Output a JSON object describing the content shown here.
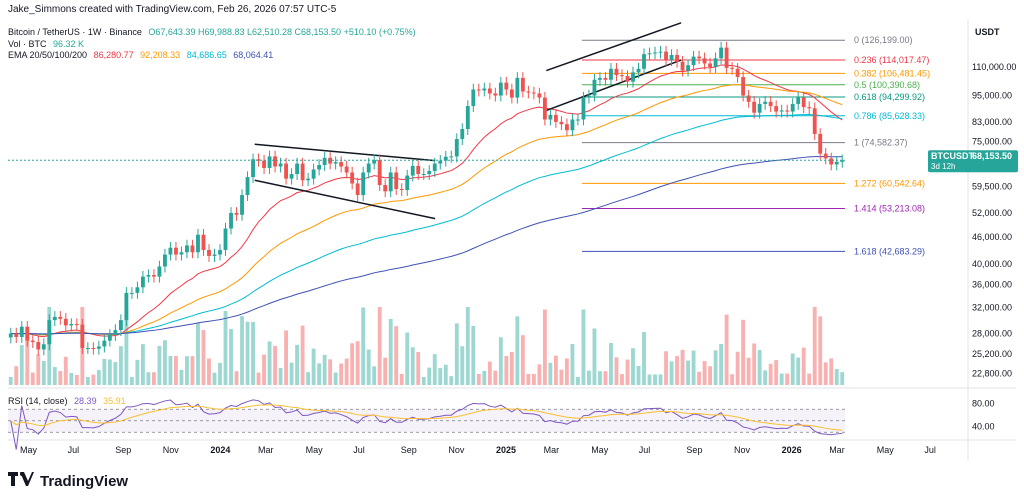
{
  "header": {
    "credit": "Jake_Simmons created with TradingView.com, Feb 26, 2026 07:57 UTC-5",
    "symbol": "Bitcoin / TetherUS · 1W · Binance",
    "ohlc": "O67,643.39  H69,988.83  L62,510.28  C68,153.50  +510.10 (+0.75%)",
    "volume_label": "Vol · BTC",
    "volume_value": "96.32 K",
    "ema_label": "EMA 20/50/100/200",
    "ema_values": [
      "86,280.77",
      "92,208.33",
      "84,686.65",
      "68,064.41"
    ],
    "currency": "USDT"
  },
  "colors": {
    "up": "#26a69a",
    "down": "#ef5350",
    "ema20": "#f23645",
    "ema50": "#ff9800",
    "ema100": "#00bcd4",
    "ema200": "#3f51b5",
    "rsi": "#7e57c2",
    "rsi_ma": "#fbc02d"
  },
  "price_axis": {
    "ticks": [
      "110,000.00",
      "95,000.00",
      "83,000.00",
      "75,000.00",
      "59,500.00",
      "52,000.00",
      "46,000.00",
      "40,000.00",
      "36,000.00",
      "32,000.00",
      "28,000.00",
      "25,200.00",
      "22,800.00"
    ],
    "ticks_num": [
      110000,
      95000,
      83000,
      75000,
      59500,
      52000,
      46000,
      40000,
      36000,
      32000,
      28000,
      25200,
      22800
    ],
    "current_label": "BTCUSDT",
    "current_price": "68,153.50",
    "countdown": "3d 12h"
  },
  "rsi_panel": {
    "label": "RSI (14, close)",
    "value": "28.39",
    "ma_value": "35.91",
    "ticks": [
      "80.00",
      "40.00"
    ],
    "ticks_num": [
      80,
      40
    ]
  },
  "time_axis": [
    "May",
    "Jul",
    "Sep",
    "Nov",
    "2024",
    "Mar",
    "May",
    "Jul",
    "Sep",
    "Nov",
    "2025",
    "Mar",
    "May",
    "Jul",
    "Sep",
    "Nov",
    "2026",
    "Mar",
    "May",
    "Jul"
  ],
  "fib_levels": [
    {
      "label": "0 (126,199.00)",
      "price": 126199,
      "color": "#787b86"
    },
    {
      "label": "0.236 (114,017.47)",
      "price": 114017,
      "color": "#f23645"
    },
    {
      "label": "0.382 (106,481.45)",
      "price": 106481,
      "color": "#ff9800"
    },
    {
      "label": "0.5 (100,390.68)",
      "price": 100390,
      "color": "#4caf50"
    },
    {
      "label": "0.618 (94,299.92)",
      "price": 94300,
      "color": "#089981"
    },
    {
      "label": "0.786 (85,628.33)",
      "price": 85628,
      "color": "#00bcd4"
    },
    {
      "label": "1 (74,582.37)",
      "price": 74582,
      "color": "#787b86"
    },
    {
      "label": "1.272 (60,542.64)",
      "price": 60542,
      "color": "#ff9800"
    },
    {
      "label": "1.414 (53,213.08)",
      "price": 53213,
      "color": "#9c27b0"
    },
    {
      "label": "1.618 (42,683.29)",
      "price": 42683,
      "color": "#3f51b5"
    }
  ],
  "chart_data": {
    "type": "candlestick",
    "title": "Bitcoin / TetherUS · 1W · Binance",
    "scale": "log",
    "ylim": [
      21500,
      140000
    ],
    "x_range": [
      "2023-04",
      "2026-08"
    ],
    "candles_close": [
      28000,
      27500,
      29000,
      27000,
      26800,
      25800,
      26500,
      30000,
      30500,
      30200,
      29200,
      29400,
      29300,
      26000,
      26000,
      25900,
      26200,
      27000,
      27800,
      28500,
      30000,
      34500,
      34500,
      35500,
      37500,
      37800,
      37500,
      39500,
      42000,
      43500,
      42000,
      42500,
      44000,
      42500,
      46500,
      43000,
      41700,
      42000,
      43000,
      48000,
      52000,
      51500,
      57000,
      62500,
      68500,
      68000,
      65500,
      69500,
      66000,
      67000,
      62000,
      63500,
      67000,
      61500,
      62000,
      65000,
      66500,
      69000,
      67000,
      67500,
      66000,
      64000,
      60500,
      57000,
      64000,
      67000,
      68200,
      60000,
      58100,
      64000,
      58800,
      58500,
      63000,
      66200,
      63500,
      63500,
      64500,
      67000,
      68000,
      69400,
      69500,
      76000,
      80000,
      90000,
      98000,
      97500,
      98500,
      96000,
      95000,
      101500,
      98000,
      94000,
      104000,
      97000,
      96500,
      96000,
      94000,
      84000,
      86000,
      83000,
      82000,
      79500,
      84000,
      84000,
      94000,
      95000,
      103000,
      104000,
      103000,
      109000,
      105500,
      105000,
      102000,
      107000,
      109000,
      117500,
      118000,
      118500,
      119000,
      114000,
      117000,
      113000,
      108000,
      111000,
      116000,
      115000,
      112000,
      110000,
      115000,
      121500,
      109500,
      109000,
      104500,
      95000,
      92000,
      87000,
      91000,
      92000,
      90000,
      87500,
      88000,
      87500,
      91000,
      94000,
      89500,
      89000,
      78000,
      70500,
      68800,
      66700,
      67600,
      68153.5
    ],
    "ema_series": [
      {
        "name": "EMA 20",
        "last": 86280.77
      },
      {
        "name": "EMA 50",
        "last": 92208.33
      },
      {
        "name": "EMA 100",
        "last": 84686.65
      },
      {
        "name": "EMA 200",
        "last": 68064.41
      }
    ],
    "rsi": {
      "last": 28.39,
      "ma": 35.91,
      "ylim": [
        20,
        100
      ]
    },
    "trendlines": [
      {
        "name": "descending channel upper",
        "from": [
          "2024-03",
          74000
        ],
        "to": [
          "2024-11",
          68000
        ]
      },
      {
        "name": "descending channel lower",
        "from": [
          "2024-03",
          61500
        ],
        "to": [
          "2024-11",
          50500
        ]
      },
      {
        "name": "rising channel upper",
        "from": [
          "2025-04",
          108000
        ],
        "to": [
          "2025-10",
          138000
        ]
      },
      {
        "name": "rising channel lower",
        "from": [
          "2025-04",
          88000
        ],
        "to": [
          "2025-10",
          114000
        ]
      }
    ]
  },
  "footer": {
    "brand": "TradingView"
  }
}
